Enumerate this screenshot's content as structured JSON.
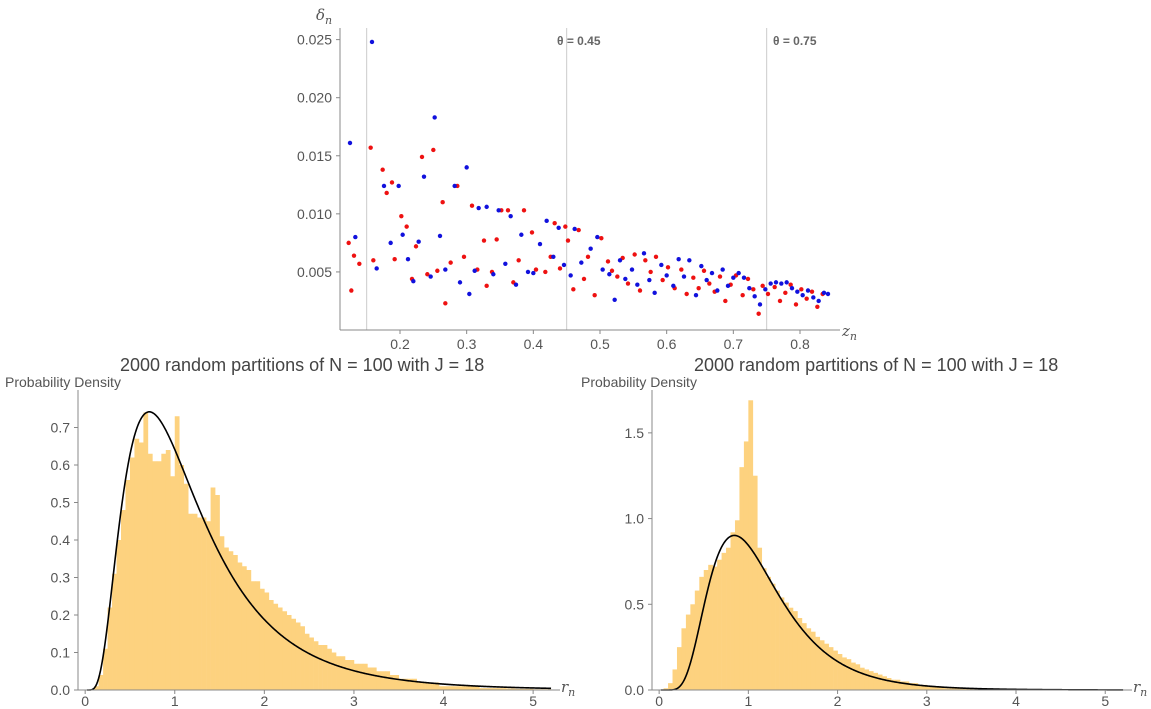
{
  "colors": {
    "red": "#ee1111",
    "blue": "#1111dd",
    "bars": "#fdd27f",
    "curve": "#000000",
    "axis": "#888888",
    "vline": "#cccccc"
  },
  "chart_data": [
    {
      "type": "scatter",
      "title": "",
      "xlabel": "z",
      "xlabel_sub": "n",
      "ylabel": "δ",
      "ylabel_sub": "n",
      "xlim": [
        0.11,
        0.86
      ],
      "ylim": [
        0.0,
        0.026
      ],
      "xticks": [
        0.2,
        0.3,
        0.4,
        0.5,
        0.6,
        0.7,
        0.8
      ],
      "yticks": [
        0.005,
        0.01,
        0.015,
        0.02,
        0.025
      ],
      "xtick_labels": [
        "0.2",
        "0.3",
        "0.4",
        "0.5",
        "0.6",
        "0.7",
        "0.8"
      ],
      "ytick_labels": [
        "0.005",
        "0.010",
        "0.015",
        "0.020",
        "0.025"
      ],
      "vlines": [
        0.15,
        0.45,
        0.75
      ],
      "annotations": [
        "θ = 0.45",
        "θ = 0.75"
      ],
      "series": [
        {
          "color": "red",
          "points": [
            [
              0.123,
              0.0075
            ],
            [
              0.127,
              0.0034
            ],
            [
              0.131,
              0.0064
            ],
            [
              0.139,
              0.0057
            ],
            [
              0.156,
              0.0157
            ],
            [
              0.16,
              0.006
            ],
            [
              0.174,
              0.0138
            ],
            [
              0.18,
              0.0118
            ],
            [
              0.188,
              0.0127
            ],
            [
              0.192,
              0.0061
            ],
            [
              0.202,
              0.0098
            ],
            [
              0.21,
              0.0089
            ],
            [
              0.218,
              0.0044
            ],
            [
              0.224,
              0.0072
            ],
            [
              0.233,
              0.0149
            ],
            [
              0.241,
              0.0048
            ],
            [
              0.25,
              0.0155
            ],
            [
              0.256,
              0.0051
            ],
            [
              0.264,
              0.011
            ],
            [
              0.268,
              0.0023
            ],
            [
              0.276,
              0.0058
            ],
            [
              0.286,
              0.0124
            ],
            [
              0.296,
              0.0063
            ],
            [
              0.308,
              0.0107
            ],
            [
              0.316,
              0.0052
            ],
            [
              0.326,
              0.0077
            ],
            [
              0.33,
              0.0038
            ],
            [
              0.338,
              0.005
            ],
            [
              0.345,
              0.0078
            ],
            [
              0.352,
              0.0103
            ],
            [
              0.362,
              0.0103
            ],
            [
              0.37,
              0.0041
            ],
            [
              0.378,
              0.006
            ],
            [
              0.386,
              0.0103
            ],
            [
              0.398,
              0.0084
            ],
            [
              0.404,
              0.0052
            ],
            [
              0.418,
              0.005
            ],
            [
              0.426,
              0.0063
            ],
            [
              0.432,
              0.0092
            ],
            [
              0.44,
              0.0053
            ],
            [
              0.448,
              0.0089
            ],
            [
              0.452,
              0.0077
            ],
            [
              0.46,
              0.0035
            ],
            [
              0.468,
              0.0086
            ],
            [
              0.476,
              0.0044
            ],
            [
              0.482,
              0.0063
            ],
            [
              0.492,
              0.003
            ],
            [
              0.502,
              0.0079
            ],
            [
              0.512,
              0.0059
            ],
            [
              0.518,
              0.0051
            ],
            [
              0.526,
              0.0046
            ],
            [
              0.534,
              0.0062
            ],
            [
              0.542,
              0.004
            ],
            [
              0.552,
              0.0065
            ],
            [
              0.56,
              0.0034
            ],
            [
              0.568,
              0.006
            ],
            [
              0.576,
              0.005
            ],
            [
              0.584,
              0.0063
            ],
            [
              0.594,
              0.0043
            ],
            [
              0.602,
              0.0054
            ],
            [
              0.612,
              0.0036
            ],
            [
              0.622,
              0.0052
            ],
            [
              0.63,
              0.0031
            ],
            [
              0.64,
              0.0045
            ],
            [
              0.648,
              0.0036
            ],
            [
              0.656,
              0.0051
            ],
            [
              0.664,
              0.004
            ],
            [
              0.672,
              0.0033
            ],
            [
              0.68,
              0.0046
            ],
            [
              0.688,
              0.0025
            ],
            [
              0.696,
              0.0039
            ],
            [
              0.704,
              0.0047
            ],
            [
              0.714,
              0.003
            ],
            [
              0.722,
              0.0044
            ],
            [
              0.73,
              0.0035
            ],
            [
              0.738,
              0.0014
            ],
            [
              0.744,
              0.0038
            ],
            [
              0.752,
              0.0031
            ],
            [
              0.762,
              0.0037
            ],
            [
              0.77,
              0.0025
            ],
            [
              0.778,
              0.0032
            ],
            [
              0.786,
              0.0039
            ],
            [
              0.794,
              0.0022
            ],
            [
              0.802,
              0.0035
            ],
            [
              0.81,
              0.0027
            ],
            [
              0.818,
              0.0033
            ],
            [
              0.826,
              0.002
            ],
            [
              0.834,
              0.0031
            ]
          ]
        },
        {
          "color": "blue",
          "points": [
            [
              0.125,
              0.0161
            ],
            [
              0.133,
              0.008
            ],
            [
              0.158,
              0.0248
            ],
            [
              0.165,
              0.0053
            ],
            [
              0.176,
              0.0124
            ],
            [
              0.186,
              0.0075
            ],
            [
              0.198,
              0.0124
            ],
            [
              0.204,
              0.0082
            ],
            [
              0.212,
              0.0061
            ],
            [
              0.22,
              0.0042
            ],
            [
              0.228,
              0.0076
            ],
            [
              0.236,
              0.0132
            ],
            [
              0.246,
              0.0046
            ],
            [
              0.252,
              0.0183
            ],
            [
              0.26,
              0.0081
            ],
            [
              0.268,
              0.0052
            ],
            [
              0.282,
              0.0124
            ],
            [
              0.29,
              0.0041
            ],
            [
              0.3,
              0.014
            ],
            [
              0.304,
              0.0031
            ],
            [
              0.312,
              0.0051
            ],
            [
              0.318,
              0.0105
            ],
            [
              0.33,
              0.0106
            ],
            [
              0.34,
              0.0048
            ],
            [
              0.348,
              0.0103
            ],
            [
              0.358,
              0.0057
            ],
            [
              0.366,
              0.0098
            ],
            [
              0.374,
              0.0039
            ],
            [
              0.382,
              0.0082
            ],
            [
              0.392,
              0.005
            ],
            [
              0.4,
              0.0049
            ],
            [
              0.41,
              0.0074
            ],
            [
              0.42,
              0.0094
            ],
            [
              0.43,
              0.0063
            ],
            [
              0.438,
              0.0088
            ],
            [
              0.446,
              0.0056
            ],
            [
              0.456,
              0.0047
            ],
            [
              0.462,
              0.0087
            ],
            [
              0.472,
              0.0058
            ],
            [
              0.486,
              0.007
            ],
            [
              0.496,
              0.008
            ],
            [
              0.504,
              0.0052
            ],
            [
              0.514,
              0.0048
            ],
            [
              0.522,
              0.0026
            ],
            [
              0.53,
              0.006
            ],
            [
              0.538,
              0.0044
            ],
            [
              0.548,
              0.0052
            ],
            [
              0.556,
              0.0039
            ],
            [
              0.566,
              0.0066
            ],
            [
              0.574,
              0.0043
            ],
            [
              0.582,
              0.0032
            ],
            [
              0.592,
              0.0056
            ],
            [
              0.6,
              0.0047
            ],
            [
              0.61,
              0.0038
            ],
            [
              0.618,
              0.0061
            ],
            [
              0.626,
              0.0046
            ],
            [
              0.634,
              0.006
            ],
            [
              0.644,
              0.003
            ],
            [
              0.652,
              0.0055
            ],
            [
              0.66,
              0.0043
            ],
            [
              0.668,
              0.0049
            ],
            [
              0.676,
              0.0034
            ],
            [
              0.684,
              0.0052
            ],
            [
              0.692,
              0.0038
            ],
            [
              0.7,
              0.0045
            ],
            [
              0.708,
              0.0049
            ],
            [
              0.716,
              0.0045
            ],
            [
              0.724,
              0.0036
            ],
            [
              0.732,
              0.0029
            ],
            [
              0.74,
              0.0022
            ],
            [
              0.748,
              0.0035
            ],
            [
              0.756,
              0.004
            ],
            [
              0.764,
              0.0041
            ],
            [
              0.772,
              0.004
            ],
            [
              0.78,
              0.0041
            ],
            [
              0.788,
              0.0036
            ],
            [
              0.796,
              0.0033
            ],
            [
              0.804,
              0.003
            ],
            [
              0.812,
              0.0034
            ],
            [
              0.82,
              0.0028
            ],
            [
              0.828,
              0.0025
            ],
            [
              0.836,
              0.0032
            ],
            [
              0.842,
              0.0031
            ]
          ]
        }
      ]
    },
    {
      "type": "bar",
      "title": "2000 random partitions of N = 100 with J = 18",
      "ylabel": "Probability Density",
      "xlabel": "r",
      "xlabel_sub": "n",
      "xlim": [
        -0.08,
        5.3
      ],
      "ylim": [
        0,
        0.8
      ],
      "xticks": [
        0,
        1,
        2,
        3,
        4,
        5
      ],
      "xtick_labels": [
        "0",
        "1",
        "2",
        "3",
        "4",
        "5"
      ],
      "yticks": [
        0,
        0.1,
        0.2,
        0.3,
        0.4,
        0.5,
        0.6,
        0.7
      ],
      "ytick_labels": [
        "0.0",
        "0.1",
        "0.2",
        "0.3",
        "0.4",
        "0.5",
        "0.6",
        "0.7"
      ],
      "bin_start": 0.0,
      "bin_width": 0.05,
      "values": [
        0.0,
        0.0,
        0.01,
        0.04,
        0.11,
        0.22,
        0.31,
        0.4,
        0.48,
        0.56,
        0.62,
        0.67,
        0.66,
        0.74,
        0.63,
        0.61,
        0.61,
        0.63,
        0.64,
        0.57,
        0.73,
        0.6,
        0.55,
        0.47,
        0.47,
        0.46,
        0.46,
        0.45,
        0.54,
        0.52,
        0.41,
        0.38,
        0.37,
        0.36,
        0.34,
        0.33,
        0.32,
        0.29,
        0.29,
        0.27,
        0.26,
        0.24,
        0.23,
        0.22,
        0.21,
        0.2,
        0.19,
        0.18,
        0.17,
        0.15,
        0.14,
        0.13,
        0.12,
        0.12,
        0.11,
        0.1,
        0.09,
        0.09,
        0.08,
        0.08,
        0.07,
        0.07,
        0.07,
        0.06,
        0.06,
        0.05,
        0.05,
        0.05,
        0.04,
        0.04,
        0.03,
        0.03,
        0.03,
        0.03,
        0.02,
        0.02,
        0.02,
        0.02,
        0.02,
        0.01,
        0.01,
        0.01,
        0.01,
        0.01,
        0.01,
        0.01,
        0.01,
        0.01,
        0.005,
        0.005,
        0.005,
        0.005,
        0.005,
        0.005,
        0.004,
        0.004,
        0.003,
        0.003,
        0.003,
        0.003,
        0.002,
        0.002,
        0.002,
        0.002,
        0.001
      ]
    },
    {
      "type": "bar",
      "title": "2000 random partitions of N = 100 with J = 18",
      "ylabel": "Probability Density",
      "xlabel": "r",
      "xlabel_sub": "n",
      "xlim": [
        -0.08,
        5.3
      ],
      "ylim": [
        0,
        1.75
      ],
      "xticks": [
        0,
        1,
        2,
        3,
        4,
        5
      ],
      "xtick_labels": [
        "0",
        "1",
        "2",
        "3",
        "4",
        "5"
      ],
      "yticks": [
        0,
        0.5,
        1.0,
        1.5
      ],
      "ytick_labels": [
        "0.0",
        "0.5",
        "1.0",
        "1.5"
      ],
      "bin_start": 0.0,
      "bin_width": 0.05,
      "values": [
        0.0,
        0.01,
        0.04,
        0.12,
        0.25,
        0.36,
        0.44,
        0.5,
        0.58,
        0.66,
        0.7,
        0.73,
        0.72,
        0.76,
        0.8,
        0.83,
        0.92,
        0.99,
        1.3,
        1.45,
        1.69,
        1.25,
        0.83,
        0.71,
        0.66,
        0.62,
        0.58,
        0.54,
        0.51,
        0.48,
        0.46,
        0.42,
        0.39,
        0.36,
        0.34,
        0.31,
        0.29,
        0.27,
        0.25,
        0.23,
        0.21,
        0.19,
        0.18,
        0.16,
        0.15,
        0.13,
        0.12,
        0.11,
        0.1,
        0.09,
        0.08,
        0.07,
        0.06,
        0.06,
        0.05,
        0.05,
        0.04,
        0.04,
        0.03,
        0.03,
        0.02,
        0.02,
        0.02,
        0.02,
        0.01,
        0.01,
        0.01,
        0.01,
        0.01,
        0.01,
        0.005,
        0.005,
        0.005,
        0.005,
        0.004,
        0.003,
        0.003,
        0.003,
        0.002,
        0.002,
        0.002,
        0.002,
        0.001,
        0.001,
        0.001
      ]
    }
  ]
}
